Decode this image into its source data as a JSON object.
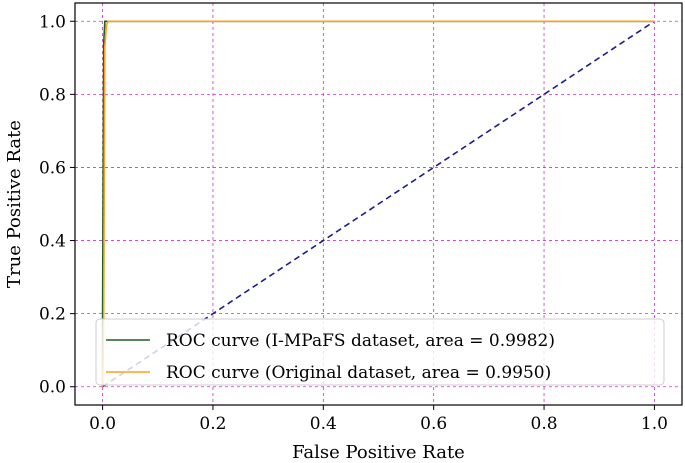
{
  "chart_data": {
    "type": "line",
    "title": "",
    "xlabel": "False Positive Rate",
    "ylabel": "True Positive Rate",
    "xlim": [
      -0.05,
      1.05
    ],
    "ylim": [
      -0.05,
      1.05
    ],
    "xticks": [
      "0.0",
      "0.2",
      "0.4",
      "0.6",
      "0.8",
      "1.0"
    ],
    "yticks": [
      "0.0",
      "0.2",
      "0.4",
      "0.6",
      "0.8",
      "1.0"
    ],
    "grid": true,
    "grid_color": "#cc33cc",
    "legend_position": "lower-right",
    "series": [
      {
        "name": "ROC curve (I-MPaFS dataset, area = 0.9982)",
        "color": "#1f5f1f",
        "style": "solid",
        "x": [
          0.0,
          0.0,
          0.002,
          0.004,
          0.004,
          1.0
        ],
        "y": [
          0.0,
          0.2,
          0.94,
          0.997,
          1.0,
          1.0
        ]
      },
      {
        "name": "ROC curve (Original dataset, area = 0.9950)",
        "color": "#ff9f1c",
        "style": "solid",
        "x": [
          0.0,
          0.002,
          0.004,
          0.007,
          0.01,
          1.0
        ],
        "y": [
          0.0,
          0.18,
          0.93,
          0.99,
          1.0,
          1.0
        ]
      },
      {
        "name": "",
        "color": "#1c1c8c",
        "style": "dashed",
        "x": [
          0.0,
          1.0
        ],
        "y": [
          0.0,
          1.0
        ]
      }
    ]
  }
}
